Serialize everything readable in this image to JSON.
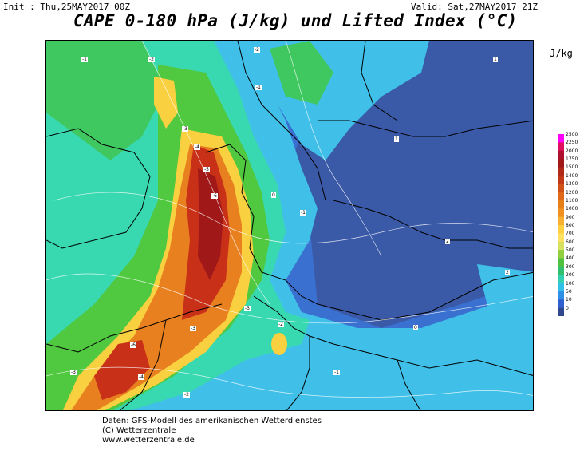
{
  "header": {
    "init": "Init : Thu,25MAY2017 00Z",
    "valid": "Valid: Sat,27MAY2017 21Z",
    "title": "CAPE 0-180 hPa (J/kg) und Lifted Index (°C)",
    "unit": "J/kg"
  },
  "legend": {
    "levels": [
      "2500",
      "2250",
      "2000",
      "1750",
      "1500",
      "1400",
      "1300",
      "1200",
      "1100",
      "1000",
      "900",
      "800",
      "700",
      "600",
      "500",
      "400",
      "300",
      "200",
      "100",
      "50",
      "10",
      "0"
    ],
    "colors": [
      "#ff00ff",
      "#e01060",
      "#b01030",
      "#a01818",
      "#b02818",
      "#c03818",
      "#d05018",
      "#e06818",
      "#e88018",
      "#f09020",
      "#f8b030",
      "#ffd040",
      "#ffe060",
      "#d8e060",
      "#90d040",
      "#50c040",
      "#30c070",
      "#30d0b0",
      "#30c0e8",
      "#3090e8",
      "#3060d0",
      "#304890"
    ]
  },
  "map": {
    "colors": {
      "ocean": "#3a5aa8",
      "low": "#3a62c0",
      "cyan": "#40c8e8",
      "aqua": "#38d8c0",
      "green": "#40c860",
      "yellow": "#f8e050",
      "orange": "#e88020",
      "red": "#c03018",
      "darkred": "#a01818"
    },
    "li_labels": [
      "-2",
      "-3",
      "-4",
      "-5",
      "-6",
      "-2",
      "-1",
      "0",
      "1",
      "2",
      "-1",
      "-3",
      "-6",
      "-4",
      "-3",
      "-1",
      "-2",
      "0",
      "1",
      "2",
      "-1",
      "-2",
      "-3"
    ]
  },
  "credits": {
    "line1": "Daten: GFS-Modell des amerikanischen Wetterdienstes",
    "line2": "(C) Wetterzentrale",
    "line3": "www.wetterzentrale.de"
  }
}
